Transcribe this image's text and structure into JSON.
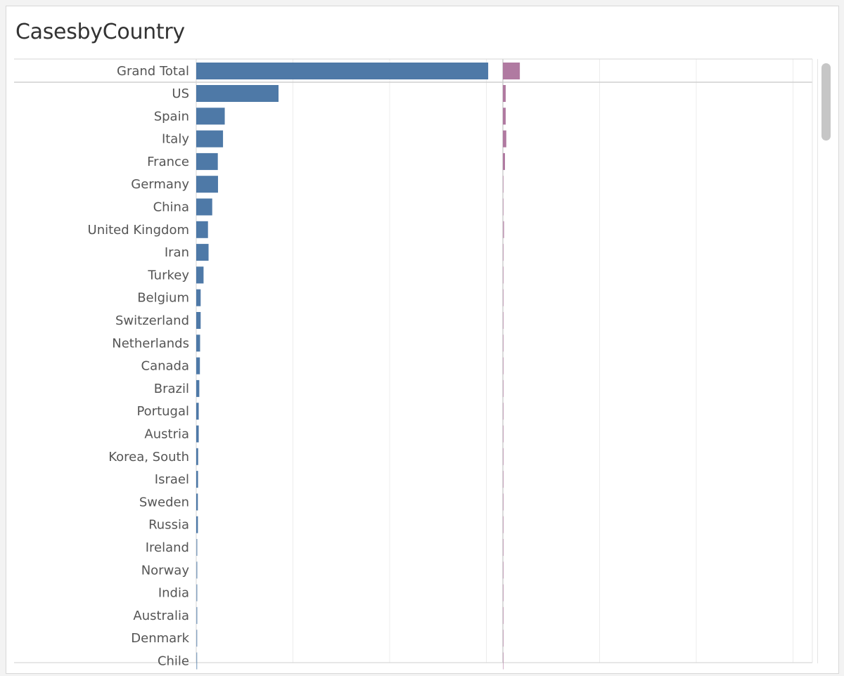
{
  "title": "CasesbyCountry",
  "chart_data": {
    "type": "bar",
    "orientation": "horizontal",
    "title": "CasesbyCountry",
    "grid": true,
    "colors": {
      "cases": "#4e79a7",
      "deaths": "#b07aa1"
    },
    "xlim": [
      0,
      1550000
    ],
    "categories": [
      "Grand Total",
      "US",
      "Spain",
      "Italy",
      "France",
      "Germany",
      "China",
      "United Kingdom",
      "Iran",
      "Turkey",
      "Belgium",
      "Switzerland",
      "Netherlands",
      "Canada",
      "Brazil",
      "Portugal",
      "Austria",
      "Korea, South",
      "Israel",
      "Sweden",
      "Russia",
      "Ireland",
      "Norway",
      "India",
      "Australia",
      "Denmark",
      "Chile"
    ],
    "series": [
      {
        "values": [
          1515000,
          427000,
          148000,
          139000,
          112000,
          113000,
          83000,
          61000,
          64000,
          38000,
          23000,
          23000,
          20000,
          19000,
          16000,
          13000,
          13000,
          10000,
          9400,
          8400,
          8700,
          6100,
          6100,
          5900,
          6000,
          5400,
          5100
        ]
      },
      {
        "values": [
          88000,
          14700,
          14600,
          17700,
          10900,
          2300,
          3300,
          7100,
          3900,
          800,
          2200,
          900,
          2200,
          400,
          800,
          400,
          300,
          200,
          70,
          700,
          60,
          240,
          100,
          200,
          50,
          240,
          60
        ]
      }
    ]
  }
}
